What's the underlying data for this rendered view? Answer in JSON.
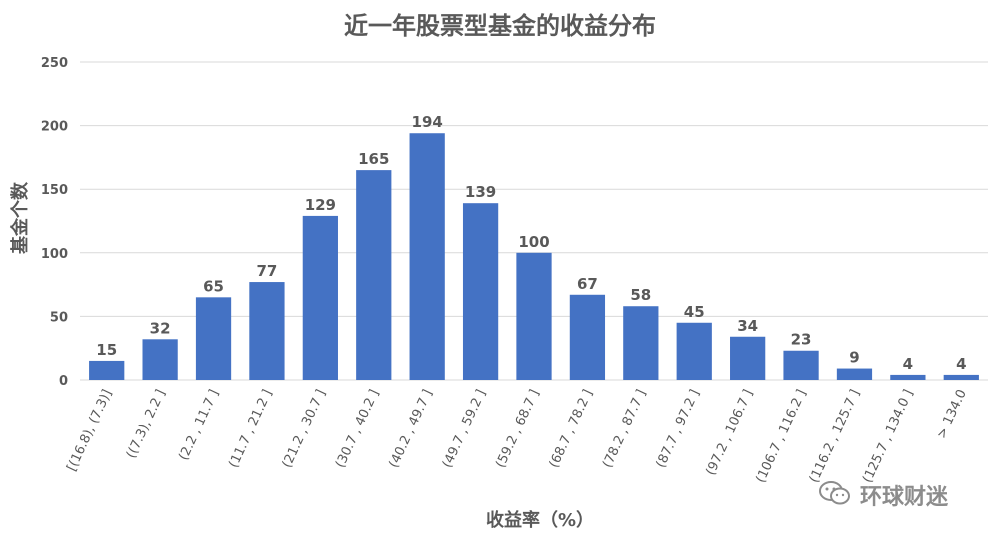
{
  "chart_data": {
    "type": "bar",
    "title": "近一年股票型基金的收益分布",
    "xlabel": "收益率（%）",
    "ylabel": "基金个数",
    "ylim": [
      0,
      250
    ],
    "yticks": [
      0,
      50,
      100,
      150,
      200,
      250
    ],
    "grid": true,
    "bar_color": "#4472C4",
    "categories": [
      "[(16.8), (7.3)]",
      "((7.3), 2.2 ]",
      "(2.2 , 11.7 ]",
      "(11.7 , 21.2 ]",
      "(21.2 , 30.7 ]",
      "(30.7 , 40.2 ]",
      "(40.2 , 49.7 ]",
      "(49.7 , 59.2 ]",
      "(59.2 , 68.7 ]",
      "(68.7 , 78.2 ]",
      "(78.2 , 87.7 ]",
      "(87.7 , 97.2 ]",
      "(97.2 , 106.7 ]",
      "(106.7 , 116.2 ]",
      "(116.2 , 125.7 ]",
      "(125.7 , 134.0 ]",
      "> 134.0"
    ],
    "values": [
      15,
      32,
      65,
      77,
      129,
      165,
      194,
      139,
      100,
      67,
      58,
      45,
      34,
      23,
      9,
      4,
      4
    ]
  },
  "watermark": {
    "text": "环球财迷",
    "icon": "wechat-icon"
  }
}
